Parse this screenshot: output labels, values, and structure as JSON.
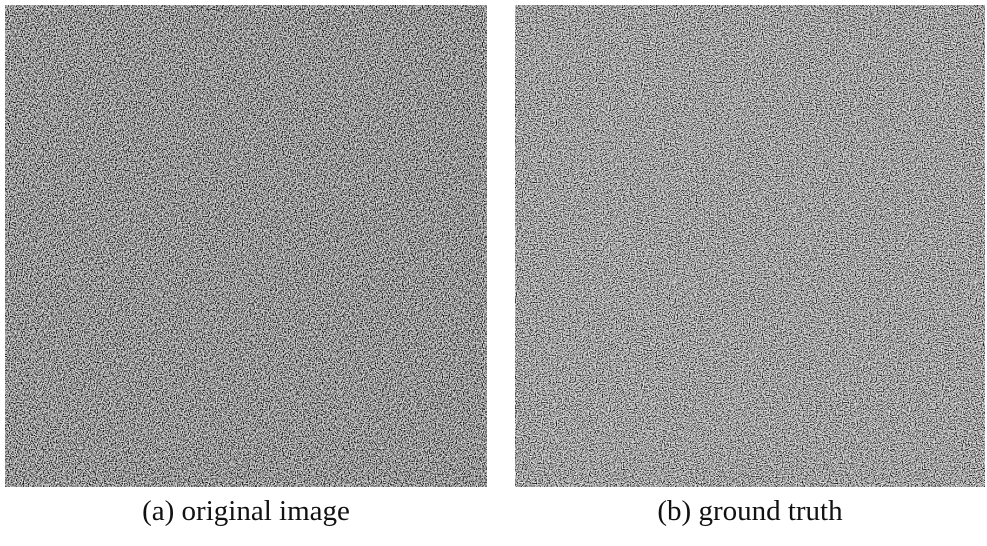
{
  "figure": {
    "panels": [
      {
        "caption": "(a) original image"
      },
      {
        "caption": "(b) ground truth"
      }
    ]
  }
}
